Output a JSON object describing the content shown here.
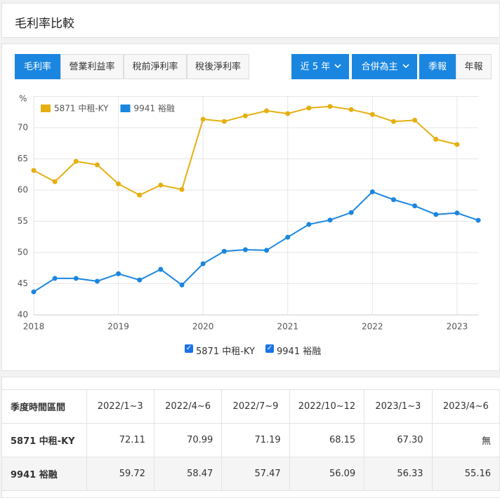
{
  "header": {
    "title": "毛利率比較"
  },
  "tabs": [
    "毛利率",
    "營業利益率",
    "稅前淨利率",
    "稅後淨利率"
  ],
  "buttons": [
    "近 5 年",
    "合併為主",
    "季報",
    "年報"
  ],
  "chart_data": {
    "type": "line",
    "unit_label": "%",
    "x": [
      2018,
      2018.25,
      2018.5,
      2018.75,
      2019,
      2019.25,
      2019.5,
      2019.75,
      2020,
      2020.25,
      2020.5,
      2020.75,
      2021,
      2021.25,
      2021.5,
      2021.75,
      2022,
      2022.25,
      2022.5,
      2022.75,
      2023,
      2023.25
    ],
    "xlim": [
      2018,
      2023.25
    ],
    "xticks": [
      2018,
      2019,
      2020,
      2021,
      2022,
      2023
    ],
    "ylim": [
      40,
      75
    ],
    "yticks": [
      40,
      45,
      50,
      55,
      60,
      65,
      70
    ],
    "grid": true,
    "series": [
      {
        "name": "5871 中租-KY",
        "color": "#e6af10",
        "values": [
          63.15,
          61.35,
          64.6,
          64.05,
          61.0,
          59.2,
          60.8,
          60.1,
          71.35,
          71.0,
          71.9,
          72.7,
          72.25,
          73.15,
          73.4,
          72.9,
          72.11,
          70.99,
          71.19,
          68.15,
          67.3,
          null
        ]
      },
      {
        "name": "9941 裕融",
        "color": "#1a86e0",
        "values": [
          43.7,
          45.85,
          45.85,
          45.4,
          46.6,
          45.6,
          47.3,
          44.8,
          48.2,
          50.2,
          50.45,
          50.35,
          52.45,
          54.5,
          55.2,
          56.4,
          59.72,
          58.47,
          57.47,
          56.09,
          56.33,
          55.16
        ]
      }
    ]
  },
  "table": {
    "header": [
      "季度時間區間",
      "2022/1~3",
      "2022/4~6",
      "2022/7~9",
      "2022/10~12",
      "2023/1~3",
      "2023/4~6"
    ],
    "rows": [
      [
        "5871 中租-KY",
        "72.11",
        "70.99",
        "71.19",
        "68.15",
        "67.30",
        "無"
      ],
      [
        "9941 裕融",
        "59.72",
        "58.47",
        "57.47",
        "56.09",
        "56.33",
        "55.16"
      ]
    ]
  }
}
